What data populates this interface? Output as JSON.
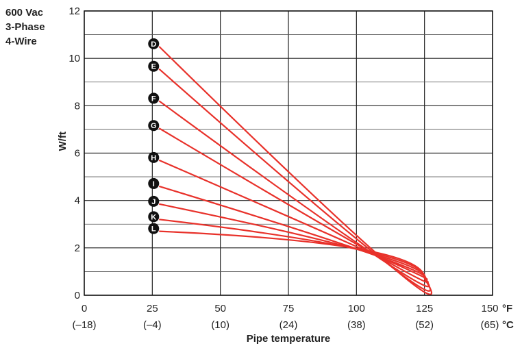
{
  "heading": {
    "line1": "600 Vac",
    "line2": "3-Phase",
    "line3": "4-Wire"
  },
  "chart_data": {
    "type": "line",
    "title": "",
    "xlabel": "Pipe temperature",
    "ylabel": "W/ft",
    "x_unit_f": "°F",
    "x_unit_c": "°C",
    "xlim": [
      0,
      150
    ],
    "ylim": [
      0,
      12
    ],
    "x_ticks": [
      0,
      25,
      50,
      75,
      100,
      125,
      150
    ],
    "x_tick_labels_f": [
      "0",
      "25",
      "50",
      "75",
      "100",
      "125",
      "150"
    ],
    "x_tick_labels_c": [
      "(–18)",
      "(–4)",
      "(10)",
      "(24)",
      "(38)",
      "(52)",
      "(65)"
    ],
    "y_ticks": [
      0,
      2,
      4,
      6,
      8,
      10,
      12
    ],
    "y_tick_labels": [
      "0",
      "2",
      "4",
      "6",
      "8",
      "10",
      "12"
    ],
    "grid": true,
    "line_color": "#e8312a",
    "marker_color": "#111111",
    "series": [
      {
        "name": "D",
        "points": [
          [
            27.5,
            10.5
          ],
          [
            110,
            1.5
          ],
          [
            125,
            0.7
          ]
        ]
      },
      {
        "name": "E",
        "points": [
          [
            27.5,
            9.55
          ],
          [
            109,
            1.55
          ],
          [
            125,
            0.7
          ]
        ]
      },
      {
        "name": "F",
        "points": [
          [
            27.5,
            8.2
          ],
          [
            108,
            1.6
          ],
          [
            125,
            0.7
          ]
        ]
      },
      {
        "name": "G",
        "points": [
          [
            27.5,
            7.05
          ],
          [
            107,
            1.7
          ],
          [
            125,
            0.7
          ]
        ]
      },
      {
        "name": "H",
        "points": [
          [
            27.5,
            5.7
          ],
          [
            106,
            1.75
          ],
          [
            125,
            0.7
          ]
        ]
      },
      {
        "name": "I",
        "points": [
          [
            27.5,
            4.6
          ],
          [
            104,
            1.8
          ],
          [
            125,
            0.7
          ]
        ]
      },
      {
        "name": "J",
        "points": [
          [
            27.5,
            3.85
          ],
          [
            103,
            1.85
          ],
          [
            125,
            0.7
          ]
        ]
      },
      {
        "name": "K",
        "points": [
          [
            27.5,
            3.2
          ],
          [
            102,
            1.9
          ],
          [
            125,
            0.7
          ]
        ]
      },
      {
        "name": "L",
        "points": [
          [
            27.5,
            2.7
          ],
          [
            101,
            1.95
          ],
          [
            125,
            0.7
          ]
        ]
      }
    ]
  }
}
